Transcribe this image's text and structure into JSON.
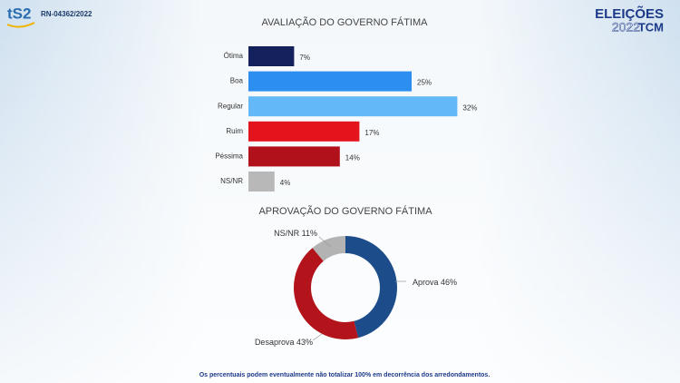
{
  "header": {
    "logo": "tS2",
    "registration": "RN-04362/2022",
    "brand": {
      "line1": "ELEIÇÕES",
      "year": "2022",
      "channel": "TCM"
    }
  },
  "chart_data": [
    {
      "type": "hbar",
      "title": "AVALIAÇÃO DO GOVERNO FÁTIMA",
      "categories": [
        "Ótima",
        "Boa",
        "Regular",
        "Ruim",
        "Péssima",
        "NS/NR"
      ],
      "values": [
        7,
        25,
        32,
        17,
        14,
        4
      ],
      "value_labels": [
        "7%",
        "25%",
        "32%",
        "17%",
        "14%",
        "4%"
      ],
      "colors": [
        "#14215c",
        "#2b8ef0",
        "#63b8f8",
        "#e3141c",
        "#b0111a",
        "#b8b8b8"
      ]
    },
    {
      "type": "donut",
      "title": "APROVAÇÃO DO GOVERNO FÁTIMA",
      "categories": [
        "Aprova",
        "Desaprova",
        "NS/NR"
      ],
      "values": [
        46,
        43,
        11
      ],
      "value_labels": [
        "46%",
        "43%",
        "11%"
      ],
      "colors": [
        "#1c4c8a",
        "#b3141c",
        "#b3b3b3"
      ]
    }
  ],
  "footnote": "Os percentuais podem eventualmente não totalizar 100% em decorrência dos arredondamentos."
}
